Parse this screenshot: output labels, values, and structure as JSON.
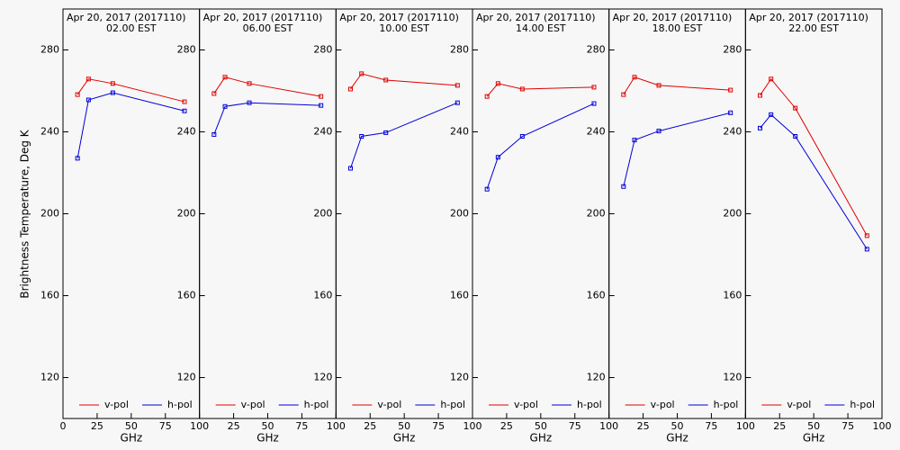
{
  "chart_data": [
    {
      "type": "line",
      "title": "Apr 20, 2017 (2017110)",
      "subtitle": "02.00 EST",
      "xlabel": "GHz",
      "ylabel": "Brightness Temperature, Deg K",
      "x": [
        10.65,
        18.7,
        36.5,
        89.0
      ],
      "xlim": [
        0,
        100
      ],
      "xticks": [
        0,
        25,
        50,
        75,
        100
      ],
      "ylim": [
        100,
        300
      ],
      "yticks": [
        120,
        160,
        200,
        240,
        280
      ],
      "series": [
        {
          "name": "v-pol",
          "color": "#e00000",
          "values": [
            258.2,
            265.8,
            263.6,
            254.7
          ]
        },
        {
          "name": "h-pol",
          "color": "#0000d8",
          "values": [
            227.1,
            255.6,
            259.1,
            250.2
          ]
        }
      ]
    },
    {
      "type": "line",
      "title": "Apr 20, 2017 (2017110)",
      "subtitle": "06.00 EST",
      "xlabel": "GHz",
      "x": [
        10.65,
        18.7,
        36.5,
        89.0
      ],
      "xlim": [
        0,
        100
      ],
      "xticks": [
        25,
        50,
        75,
        100
      ],
      "ylim": [
        100,
        300
      ],
      "yticks": [
        120,
        160,
        200,
        240,
        280
      ],
      "series": [
        {
          "name": "v-pol",
          "color": "#e00000",
          "values": [
            258.7,
            266.7,
            263.6,
            257.3
          ]
        },
        {
          "name": "h-pol",
          "color": "#0000d8",
          "values": [
            238.7,
            252.4,
            254.2,
            252.9
          ]
        }
      ]
    },
    {
      "type": "line",
      "title": "Apr 20, 2017 (2017110)",
      "subtitle": "10.00 EST",
      "xlabel": "GHz",
      "x": [
        10.65,
        18.7,
        36.5,
        89.0
      ],
      "xlim": [
        0,
        100
      ],
      "xticks": [
        25,
        50,
        75,
        100
      ],
      "ylim": [
        100,
        300
      ],
      "yticks": [
        120,
        160,
        200,
        240,
        280
      ],
      "series": [
        {
          "name": "v-pol",
          "color": "#e00000",
          "values": [
            260.9,
            268.4,
            265.3,
            262.7
          ]
        },
        {
          "name": "h-pol",
          "color": "#0000d8",
          "values": [
            222.2,
            237.8,
            239.6,
            254.2
          ]
        }
      ]
    },
    {
      "type": "line",
      "title": "Apr 20, 2017 (2017110)",
      "subtitle": "14.00 EST",
      "xlabel": "GHz",
      "x": [
        10.65,
        18.7,
        36.5,
        89.0
      ],
      "xlim": [
        0,
        100
      ],
      "xticks": [
        25,
        50,
        75,
        100
      ],
      "ylim": [
        100,
        300
      ],
      "yticks": [
        120,
        160,
        200,
        240,
        280
      ],
      "series": [
        {
          "name": "v-pol",
          "color": "#e00000",
          "values": [
            257.3,
            263.6,
            260.9,
            261.8
          ]
        },
        {
          "name": "h-pol",
          "color": "#0000d8",
          "values": [
            212.0,
            227.6,
            237.8,
            253.8
          ]
        }
      ]
    },
    {
      "type": "line",
      "title": "Apr 20, 2017 (2017110)",
      "subtitle": "18.00 EST",
      "xlabel": "GHz",
      "x": [
        10.65,
        18.7,
        36.5,
        89.0
      ],
      "xlim": [
        0,
        100
      ],
      "xticks": [
        25,
        50,
        75,
        100
      ],
      "ylim": [
        100,
        300
      ],
      "yticks": [
        120,
        160,
        200,
        240,
        280
      ],
      "series": [
        {
          "name": "v-pol",
          "color": "#e00000",
          "values": [
            258.2,
            266.7,
            262.7,
            260.4
          ]
        },
        {
          "name": "h-pol",
          "color": "#0000d8",
          "values": [
            213.3,
            236.0,
            240.4,
            249.3
          ]
        }
      ]
    },
    {
      "type": "line",
      "title": "Apr 20, 2017 (2017110)",
      "subtitle": "22.00 EST",
      "xlabel": "GHz",
      "x": [
        10.65,
        18.7,
        36.5,
        89.0
      ],
      "xlim": [
        0,
        100
      ],
      "xticks": [
        25,
        50,
        75,
        100
      ],
      "ylim": [
        100,
        300
      ],
      "yticks": [
        120,
        160,
        200,
        240,
        280
      ],
      "series": [
        {
          "name": "v-pol",
          "color": "#e00000",
          "values": [
            257.8,
            265.8,
            251.6,
            189.3
          ]
        },
        {
          "name": "h-pol",
          "color": "#0000d8",
          "values": [
            241.8,
            248.4,
            237.8,
            182.7
          ]
        }
      ]
    }
  ]
}
